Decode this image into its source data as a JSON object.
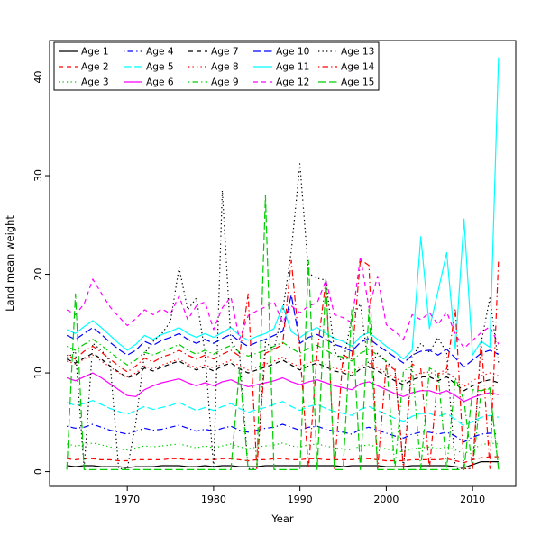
{
  "figure": {
    "xlabel": "Year",
    "ylabel": "Land mean weight"
  },
  "chart_data": {
    "type": "line",
    "title": "",
    "xlabel": "Year",
    "ylabel": "Land mean weight",
    "xlim": [
      1961,
      2015
    ],
    "ylim": [
      -1.5,
      43.7
    ],
    "x_ticks": [
      1970,
      1980,
      1990,
      2000,
      2010
    ],
    "y_ticks": [
      0,
      10,
      20,
      30,
      40
    ],
    "grid": false,
    "legend_position": "top-left",
    "legend_ncol": 5,
    "x": [
      1963,
      1964,
      1965,
      1966,
      1967,
      1968,
      1969,
      1970,
      1971,
      1972,
      1973,
      1974,
      1975,
      1976,
      1977,
      1978,
      1979,
      1980,
      1981,
      1982,
      1983,
      1984,
      1985,
      1986,
      1987,
      1988,
      1989,
      1990,
      1991,
      1992,
      1993,
      1994,
      1995,
      1996,
      1997,
      1998,
      1999,
      2000,
      2001,
      2002,
      2003,
      2004,
      2005,
      2006,
      2007,
      2008,
      2009,
      2010,
      2011,
      2012,
      2013
    ],
    "series": [
      {
        "name": "Age 1",
        "color": "#000000",
        "linestyle": "solid",
        "values": [
          0.6,
          0.5,
          0.6,
          0.6,
          0.5,
          0.5,
          0.5,
          0.4,
          0.5,
          0.5,
          0.5,
          0.6,
          0.6,
          0.6,
          0.5,
          0.5,
          0.6,
          0.5,
          0.6,
          0.6,
          0.5,
          0.5,
          0.5,
          0.6,
          0.6,
          0.6,
          0.6,
          0.6,
          0.6,
          0.6,
          0.6,
          0.6,
          0.5,
          0.6,
          0.6,
          0.6,
          0.6,
          0.5,
          0.5,
          0.5,
          0.6,
          0.6,
          0.6,
          0.6,
          0.6,
          0.5,
          0.4,
          0.7,
          1.0,
          1.0,
          1.0
        ]
      },
      {
        "name": "Age 2",
        "color": "#FF0000",
        "linestyle": "dashed",
        "values": [
          1.3,
          1.2,
          1.3,
          1.3,
          1.2,
          1.2,
          1.1,
          1.1,
          1.2,
          1.2,
          1.2,
          1.2,
          1.3,
          1.3,
          1.2,
          1.2,
          1.2,
          1.2,
          1.3,
          1.3,
          1.2,
          1.1,
          1.2,
          1.2,
          1.3,
          1.3,
          1.2,
          1.2,
          1.3,
          1.3,
          1.2,
          1.2,
          1.2,
          1.2,
          1.3,
          1.3,
          1.2,
          1.1,
          1.1,
          1.1,
          1.2,
          1.2,
          1.2,
          1.2,
          1.3,
          1.1,
          0.9,
          1.2,
          1.4,
          1.5,
          1.5
        ]
      },
      {
        "name": "Age 3",
        "color": "#00CD00",
        "linestyle": "dotted",
        "values": [
          2.8,
          2.6,
          2.7,
          2.9,
          2.7,
          2.5,
          2.3,
          2.2,
          2.4,
          2.6,
          2.5,
          2.6,
          2.7,
          2.8,
          2.6,
          2.4,
          2.6,
          2.4,
          2.6,
          2.8,
          2.5,
          2.3,
          2.5,
          2.6,
          2.7,
          2.9,
          2.6,
          2.5,
          2.7,
          2.8,
          2.6,
          2.4,
          2.3,
          2.2,
          2.6,
          2.7,
          2.5,
          2.3,
          2.1,
          2.0,
          2.3,
          2.4,
          2.5,
          2.3,
          2.5,
          2.2,
          1.8,
          2.3,
          2.7,
          2.9,
          2.8
        ]
      },
      {
        "name": "Age 4",
        "color": "#0000FF",
        "linestyle": "dotdash",
        "values": [
          4.6,
          4.4,
          4.5,
          4.8,
          4.5,
          4.2,
          4.0,
          3.8,
          4.1,
          4.4,
          4.2,
          4.3,
          4.5,
          4.7,
          4.4,
          4.1,
          4.3,
          4.1,
          4.4,
          4.6,
          4.2,
          4.0,
          4.2,
          4.4,
          4.5,
          4.8,
          4.5,
          4.2,
          4.5,
          4.6,
          4.3,
          4.1,
          4.0,
          3.8,
          4.3,
          4.5,
          4.2,
          3.9,
          3.6,
          3.4,
          3.8,
          4.0,
          4.0,
          3.8,
          4.0,
          3.6,
          3.0,
          3.5,
          3.8,
          3.9,
          3.8
        ]
      },
      {
        "name": "Age 5",
        "color": "#00FFFF",
        "linestyle": "longdash",
        "values": [
          7.0,
          6.7,
          6.9,
          7.2,
          6.8,
          6.4,
          6.1,
          5.8,
          6.2,
          6.6,
          6.3,
          6.5,
          6.7,
          7.0,
          6.6,
          6.2,
          6.5,
          6.2,
          6.6,
          6.9,
          6.4,
          6.0,
          6.3,
          6.5,
          6.8,
          7.1,
          6.6,
          6.2,
          6.6,
          6.8,
          6.4,
          6.1,
          5.9,
          5.7,
          6.3,
          6.6,
          6.2,
          5.8,
          5.4,
          5.1,
          5.6,
          5.9,
          5.9,
          5.6,
          5.9,
          5.3,
          4.6,
          5.1,
          5.5,
          5.7,
          5.5
        ]
      },
      {
        "name": "Age 6",
        "color": "#FF00FF",
        "linestyle": "solid",
        "values": [
          9.5,
          9.2,
          9.6,
          10.0,
          9.5,
          8.9,
          8.3,
          7.7,
          7.6,
          8.3,
          8.7,
          9.0,
          9.2,
          9.4,
          9.0,
          8.7,
          9.0,
          8.7,
          9.1,
          9.3,
          8.9,
          8.6,
          8.8,
          9.0,
          9.2,
          9.5,
          9.1,
          8.8,
          9.1,
          9.3,
          9.0,
          8.7,
          8.5,
          8.3,
          8.9,
          9.1,
          8.7,
          8.3,
          7.9,
          7.6,
          8.0,
          8.2,
          8.2,
          7.9,
          8.2,
          7.7,
          7.1,
          7.5,
          7.8,
          8.0,
          7.8
        ]
      },
      {
        "name": "Age 7",
        "color": "#000000",
        "linestyle": "dashed",
        "values": [
          11.4,
          11.0,
          11.5,
          12.0,
          11.4,
          10.7,
          10.1,
          9.5,
          9.8,
          10.5,
          10.2,
          10.6,
          10.9,
          11.2,
          10.7,
          10.3,
          10.6,
          10.2,
          10.7,
          11.0,
          10.4,
          10.0,
          10.3,
          10.6,
          10.9,
          11.3,
          10.8,
          10.3,
          10.7,
          11.0,
          10.6,
          10.2,
          10.0,
          9.7,
          10.4,
          10.7,
          10.2,
          9.7,
          9.2,
          8.8,
          9.3,
          9.6,
          9.6,
          9.2,
          9.6,
          8.9,
          8.2,
          8.7,
          9.1,
          9.3,
          9.0
        ]
      },
      {
        "name": "Age 8",
        "color": "#FF0000",
        "linestyle": "dotted",
        "values": [
          11.2,
          10.9,
          11.4,
          11.8,
          11.2,
          10.6,
          10.0,
          9.6,
          10.0,
          10.7,
          10.4,
          10.8,
          11.1,
          11.4,
          10.9,
          10.5,
          10.8,
          10.5,
          10.9,
          11.3,
          10.7,
          10.3,
          10.6,
          10.9,
          11.2,
          11.6,
          11.0,
          10.6,
          11.0,
          11.3,
          10.9,
          10.5,
          10.3,
          10.0,
          10.7,
          11.0,
          10.5,
          10.0,
          9.5,
          9.1,
          9.7,
          10.0,
          10.1,
          9.7,
          10.1,
          9.4,
          8.6,
          9.2,
          9.7,
          10.0,
          9.7
        ]
      },
      {
        "name": "Age 9",
        "color": "#00CD00",
        "linestyle": "dotdash",
        "values": [
          12.7,
          12.3,
          12.9,
          13.4,
          12.8,
          12.1,
          11.4,
          10.8,
          11.3,
          12.1,
          11.8,
          12.2,
          12.5,
          12.9,
          12.3,
          11.9,
          12.3,
          11.9,
          12.4,
          12.8,
          12.1,
          11.7,
          12.0,
          12.3,
          12.7,
          13.1,
          12.5,
          12.0,
          12.5,
          12.8,
          12.3,
          11.8,
          11.6,
          11.2,
          12.0,
          12.4,
          11.8,
          11.2,
          0.3,
          10.2,
          10.7,
          0.3,
          10.5,
          10.0,
          0.3,
          9.5,
          7.2,
          0.3,
          8.2,
          8.5,
          0.3
        ]
      },
      {
        "name": "Age 10",
        "color": "#0000FF",
        "linestyle": "longdash",
        "values": [
          13.8,
          13.4,
          14.0,
          14.6,
          13.9,
          13.1,
          12.4,
          11.8,
          12.3,
          13.2,
          12.8,
          13.3,
          13.6,
          14.0,
          13.4,
          13.0,
          13.4,
          13.0,
          13.5,
          13.9,
          13.2,
          12.7,
          13.1,
          13.4,
          13.8,
          14.2,
          17.9,
          13.0,
          13.6,
          13.9,
          13.4,
          12.9,
          12.6,
          12.2,
          13.1,
          13.5,
          12.8,
          12.2,
          11.6,
          11.0,
          11.8,
          12.2,
          12.3,
          11.8,
          12.4,
          11.5,
          10.6,
          11.3,
          12.0,
          12.3,
          11.9
        ]
      },
      {
        "name": "Age 11",
        "color": "#00FFFF",
        "linestyle": "solid",
        "values": [
          14.4,
          14.0,
          14.7,
          15.3,
          14.6,
          13.8,
          13.0,
          12.3,
          12.9,
          13.8,
          13.4,
          13.9,
          14.2,
          14.6,
          14.0,
          13.6,
          14.0,
          13.6,
          14.1,
          14.6,
          13.8,
          13.3,
          13.7,
          14.0,
          14.5,
          16.8,
          14.2,
          13.6,
          14.2,
          14.6,
          14.0,
          13.5,
          13.2,
          12.7,
          13.7,
          14.1,
          13.4,
          12.7,
          12.1,
          11.4,
          12.3,
          23.8,
          14.5,
          18.3,
          22.2,
          12.4,
          25.6,
          11.8,
          13.2,
          12.6,
          42.0
        ]
      },
      {
        "name": "Age 12",
        "color": "#FF00FF",
        "linestyle": "dashed",
        "values": [
          16.4,
          15.9,
          17.0,
          19.5,
          18.1,
          16.7,
          15.7,
          14.8,
          15.5,
          16.4,
          15.9,
          16.5,
          16.0,
          17.8,
          15.4,
          16.8,
          17.2,
          14.4,
          16.6,
          17.7,
          13.4,
          15.8,
          16.3,
          16.7,
          17.2,
          15.1,
          16.8,
          16.1,
          16.8,
          17.1,
          19.4,
          15.9,
          15.6,
          15.1,
          21.8,
          16.6,
          19.8,
          14.9,
          14.2,
          13.4,
          15.9,
          15.4,
          16.1,
          14.9,
          16.2,
          13.9,
          12.5,
          13.3,
          14.1,
          14.7,
          12.9
        ]
      },
      {
        "name": "Age 13",
        "color": "#000000",
        "linestyle": "dotted",
        "values": [
          11.5,
          12.2,
          0.3,
          13.0,
          12.3,
          11.2,
          0.3,
          0.3,
          5.0,
          12.0,
          13.2,
          14.0,
          15.2,
          20.7,
          16.4,
          17.6,
          12.1,
          0.3,
          28.5,
          13.2,
          12.0,
          0.3,
          0.3,
          13.1,
          12.4,
          16.2,
          22.4,
          31.2,
          20.1,
          19.6,
          19.4,
          12.2,
          11.0,
          15.6,
          17.0,
          10.4,
          12.0,
          11.1,
          10.4,
          0.3,
          11.6,
          13.0,
          12.1,
          13.6,
          12.0,
          0.3,
          0.3,
          0.3,
          13.1,
          17.6,
          11.0
        ]
      },
      {
        "name": "Age 14",
        "color": "#FF0000",
        "linestyle": "dotdash",
        "values": [
          11.8,
          11.4,
          12.2,
          12.7,
          12.1,
          11.4,
          10.7,
          10.1,
          10.7,
          11.5,
          11.1,
          11.6,
          11.9,
          12.3,
          11.8,
          11.4,
          11.8,
          11.4,
          11.9,
          12.3,
          11.7,
          18.0,
          0.3,
          12.0,
          12.4,
          12.9,
          21.4,
          12.2,
          0.3,
          12.1,
          19.4,
          0.3,
          11.8,
          11.4,
          21.5,
          20.9,
          0.3,
          10.9,
          10.3,
          0.3,
          10.9,
          10.4,
          0.3,
          9.9,
          10.4,
          16.5,
          0.3,
          0.3,
          13.4,
          0.3,
          21.5
        ]
      },
      {
        "name": "Age 15",
        "color": "#00CD00",
        "linestyle": "longdash",
        "values": [
          0.2,
          18.0,
          0.2,
          0.2,
          0.2,
          0.2,
          0.2,
          0.2,
          0.2,
          0.2,
          0.2,
          0.2,
          0.2,
          0.2,
          0.2,
          0.2,
          0.2,
          0.2,
          0.2,
          0.2,
          10.5,
          0.2,
          0.2,
          28.0,
          0.2,
          0.2,
          0.2,
          0.2,
          21.4,
          0.2,
          19.5,
          0.2,
          0.2,
          16.4,
          0.2,
          16.5,
          0.2,
          0.2,
          0.2,
          0.2,
          0.2,
          0.2,
          0.2,
          0.2,
          0.2,
          0.2,
          0.2,
          8.3,
          8.2,
          8.4,
          0.2
        ]
      }
    ]
  }
}
